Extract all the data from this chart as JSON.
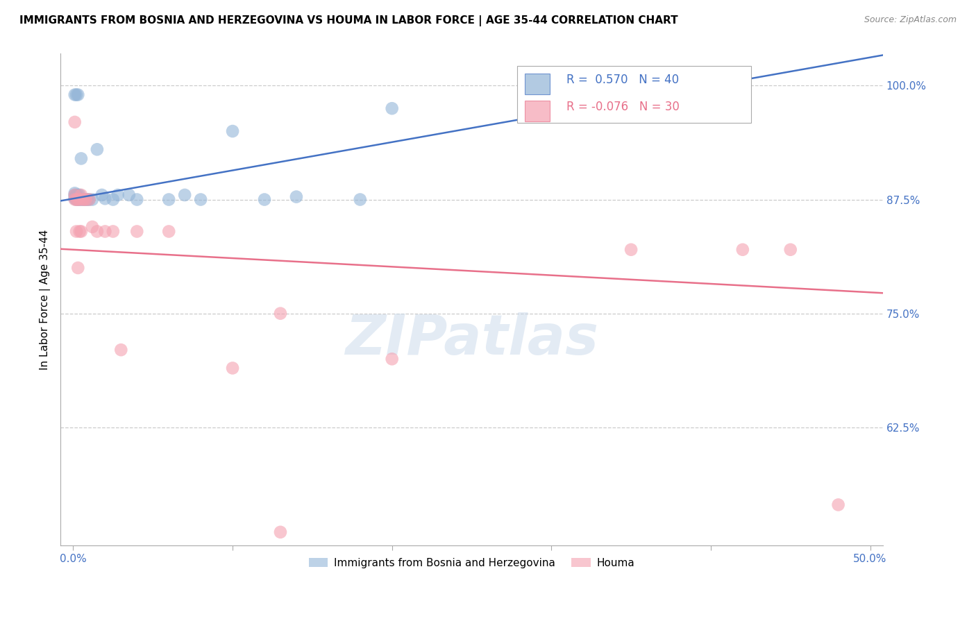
{
  "title": "IMMIGRANTS FROM BOSNIA AND HERZEGOVINA VS HOUMA IN LABOR FORCE | AGE 35-44 CORRELATION CHART",
  "source": "Source: ZipAtlas.com",
  "ylabel": "In Labor Force | Age 35-44",
  "blue_R": 0.57,
  "blue_N": 40,
  "pink_R": -0.076,
  "pink_N": 30,
  "blue_color": "#92B4D7",
  "pink_color": "#F4A0B0",
  "blue_line_color": "#4472C4",
  "pink_line_color": "#E8708A",
  "legend_label_blue": "Immigrants from Bosnia and Herzegovina",
  "legend_label_pink": "Houma",
  "watermark": "ZIPatlas",
  "blue_x": [
    0.001,
    0.001,
    0.001,
    0.001,
    0.001,
    0.002,
    0.002,
    0.002,
    0.002,
    0.003,
    0.003,
    0.003,
    0.004,
    0.004,
    0.005,
    0.005,
    0.006,
    0.007,
    0.008,
    0.009,
    0.01,
    0.012,
    0.015,
    0.018,
    0.02,
    0.025,
    0.028,
    0.035,
    0.04,
    0.06,
    0.07,
    0.08,
    0.1,
    0.12,
    0.14,
    0.18,
    0.2,
    0.3,
    0.37,
    0.38
  ],
  "blue_y": [
    0.876,
    0.878,
    0.88,
    0.882,
    0.99,
    0.875,
    0.877,
    0.88,
    0.99,
    0.875,
    0.88,
    0.99,
    0.875,
    0.88,
    0.875,
    0.92,
    0.875,
    0.875,
    0.875,
    0.875,
    0.875,
    0.875,
    0.93,
    0.88,
    0.876,
    0.875,
    0.88,
    0.88,
    0.875,
    0.875,
    0.88,
    0.875,
    0.95,
    0.875,
    0.878,
    0.875,
    0.975,
    0.997,
    1.0,
    1.0
  ],
  "pink_x": [
    0.001,
    0.001,
    0.001,
    0.002,
    0.002,
    0.003,
    0.003,
    0.004,
    0.004,
    0.005,
    0.005,
    0.006,
    0.007,
    0.008,
    0.01,
    0.012,
    0.015,
    0.02,
    0.025,
    0.03,
    0.04,
    0.06,
    0.1,
    0.13,
    0.2,
    0.35,
    0.42,
    0.45,
    0.48,
    0.13
  ],
  "pink_y": [
    0.875,
    0.88,
    0.96,
    0.84,
    0.875,
    0.8,
    0.875,
    0.84,
    0.875,
    0.84,
    0.88,
    0.875,
    0.875,
    0.875,
    0.875,
    0.845,
    0.84,
    0.84,
    0.84,
    0.71,
    0.84,
    0.84,
    0.69,
    0.75,
    0.7,
    0.82,
    0.82,
    0.82,
    0.54,
    0.51
  ]
}
